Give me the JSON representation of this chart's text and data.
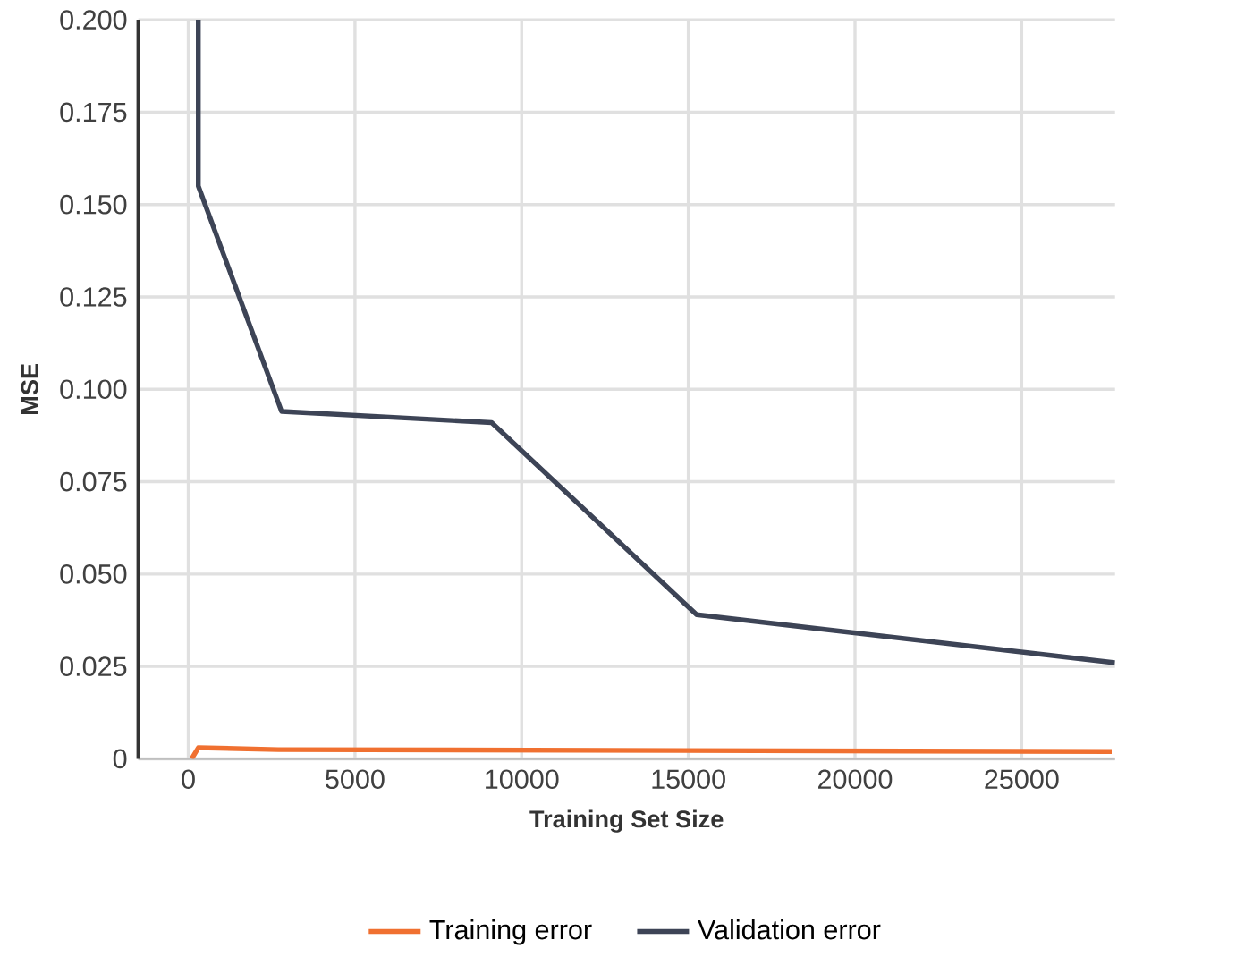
{
  "chart_data": {
    "type": "line",
    "xlabel": "Training Set Size",
    "ylabel": "MSE",
    "xlim": [
      -1500,
      27800
    ],
    "ylim": [
      0,
      0.2
    ],
    "xticks": [
      0,
      5000,
      10000,
      15000,
      20000,
      25000
    ],
    "yticks": [
      {
        "value": 0,
        "label": "0"
      },
      {
        "value": 0.025,
        "label": "0.025"
      },
      {
        "value": 0.05,
        "label": "0.050"
      },
      {
        "value": 0.075,
        "label": "0.075"
      },
      {
        "value": 0.1,
        "label": "0.100"
      },
      {
        "value": 0.125,
        "label": "0.125"
      },
      {
        "value": 0.15,
        "label": "0.150"
      },
      {
        "value": 0.175,
        "label": "0.175"
      },
      {
        "value": 0.2,
        "label": "0.200"
      }
    ],
    "grid": true,
    "legend": "bottom",
    "marker": "none",
    "line_style": "solid",
    "series": [
      {
        "name": "Training error",
        "color": "#f07030",
        "x": [
          100,
          300,
          2700,
          27700
        ],
        "values": [
          0,
          0.003,
          0.0025,
          0.002
        ]
      },
      {
        "name": "Validation error",
        "color": "#3d4456",
        "x": [
          300,
          300,
          2800,
          9100,
          15250,
          27800
        ],
        "values": [
          0.2,
          0.155,
          0.094,
          0.091,
          0.039,
          0.026
        ]
      }
    ]
  }
}
